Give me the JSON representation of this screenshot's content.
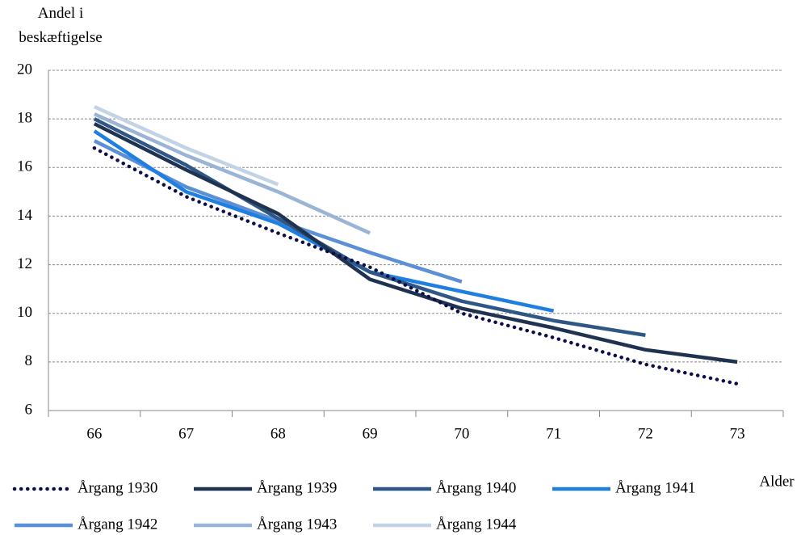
{
  "chart_data": {
    "type": "line",
    "y_label": "Andel i beskæftigelse",
    "x_label": "Alder",
    "categories": [
      "66",
      "67",
      "68",
      "69",
      "70",
      "71",
      "72",
      "73"
    ],
    "ylim": [
      6,
      20
    ],
    "yticks": [
      6,
      8,
      10,
      12,
      14,
      16,
      18,
      20
    ],
    "grid": true,
    "series": [
      {
        "name": "Årgang 1930",
        "color": "#0d0d4a",
        "line_style": "dotted",
        "values": [
          16.8,
          14.8,
          13.3,
          11.9,
          10.0,
          9.0,
          7.9,
          7.1
        ]
      },
      {
        "name": "Årgang 1939",
        "color": "#1f3350",
        "line_style": "solid",
        "values": [
          17.8,
          15.9,
          14.1,
          11.4,
          10.2,
          9.4,
          8.5,
          8.0
        ]
      },
      {
        "name": "Årgang 1940",
        "color": "#2e5785",
        "line_style": "solid",
        "values": [
          18.0,
          16.1,
          13.9,
          11.7,
          10.5,
          9.7,
          9.1,
          null
        ]
      },
      {
        "name": "Årgang 1941",
        "color": "#1f7fe0",
        "line_style": "solid",
        "values": [
          17.5,
          15.0,
          13.7,
          11.7,
          10.9,
          10.1,
          null,
          null
        ]
      },
      {
        "name": "Årgang 1942",
        "color": "#5b8fd6",
        "line_style": "solid",
        "values": [
          17.1,
          15.2,
          13.8,
          12.5,
          11.3,
          null,
          null,
          null
        ]
      },
      {
        "name": "Årgang 1943",
        "color": "#9ab4d6",
        "line_style": "solid",
        "values": [
          18.2,
          16.5,
          15.0,
          13.3,
          null,
          null,
          null,
          null
        ]
      },
      {
        "name": "Årgang 1944",
        "color": "#c3d3e6",
        "line_style": "solid",
        "values": [
          18.5,
          16.8,
          15.3,
          null,
          null,
          null,
          null,
          null
        ]
      }
    ]
  }
}
